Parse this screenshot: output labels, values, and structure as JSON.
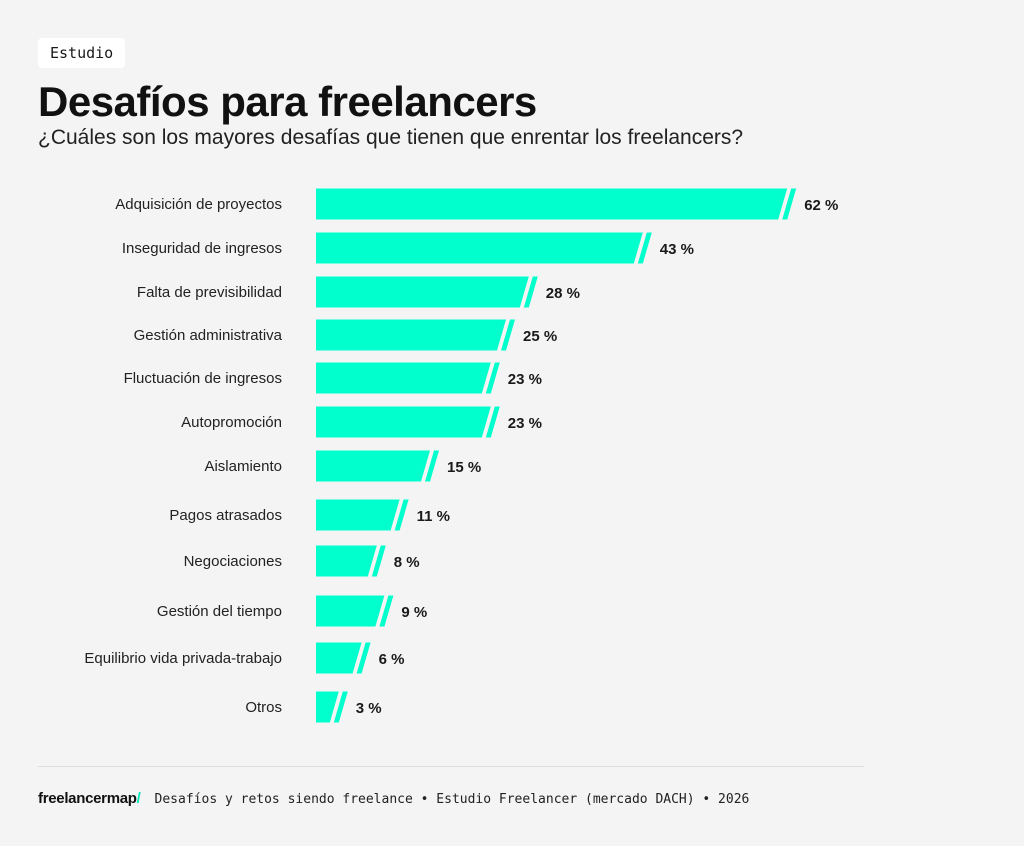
{
  "tag": "Estudio",
  "footer": {
    "brand": "freelancermap",
    "brand_slash": "/",
    "text": "Desafíos y retos siendo freelance • Estudio Freelancer (mercado DACH) • 2026"
  },
  "colors": {
    "bar": "#00ffcc",
    "background": "#f4f4f4",
    "text": "#1a1a1a"
  },
  "chart_data": {
    "type": "bar",
    "orientation": "horizontal",
    "title": "Desafíos para freelancers",
    "subtitle": "¿Cuáles son los mayores desafías que tienen que enrentar los freelancers?",
    "categories": [
      "Adquisición de proyectos",
      "Inseguridad de ingresos",
      "Falta de previsibilidad",
      "Gestión administrativa",
      "Fluctuación de ingresos",
      "Autopromoción",
      "Aislamiento",
      "Pagos atrasados",
      "Negociaciones",
      "Gestión del tiempo",
      "Equilibrio vida privada-trabajo",
      "Otros"
    ],
    "values": [
      62,
      43,
      28,
      25,
      23,
      23,
      15,
      11,
      8,
      9,
      6,
      3
    ],
    "value_labels": [
      "62 %",
      "43 %",
      "28 %",
      "25 %",
      "23 %",
      "23 %",
      "15 %",
      "11 %",
      "8 %",
      "9 %",
      "6 %",
      "3 %"
    ],
    "unit": "%",
    "grid": false,
    "legend": "none"
  }
}
